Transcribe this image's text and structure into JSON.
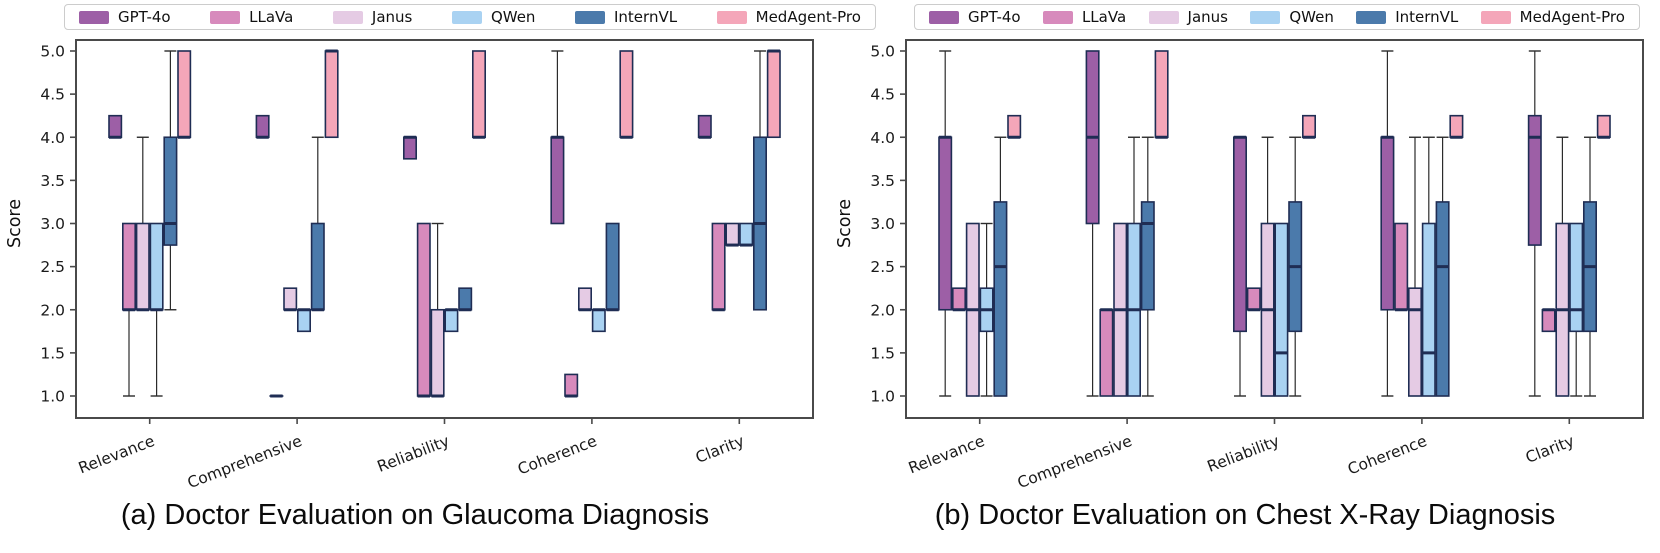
{
  "figure": {
    "background": "#ffffff",
    "box_format": [
      "min",
      "q1",
      "median",
      "q3",
      "max"
    ],
    "series_names": [
      "GPT-4o",
      "LLaVa",
      "Janus",
      "QWen",
      "InternVL",
      "MedAgent-Pro"
    ],
    "series_colors": {
      "GPT-4o": "#9d5fa6",
      "LLaVa": "#d78abc",
      "Janus": "#e5cbe4",
      "QWen": "#a9d2f2",
      "InternVL": "#4b7aab",
      "MedAgent-Pro": "#f4a6b9"
    },
    "style": {
      "box_edge_color": "#1f2d54",
      "median_color": "#1f2d54",
      "whisker_color": "#2b2b2b",
      "spine_color": "#4a4a4a",
      "tick_label_color": "#1a1a1a"
    }
  },
  "chart_data": [
    {
      "type": "boxplot",
      "title": "(a) Doctor Evaluation on Glaucoma Diagnosis",
      "ylabel": "Score",
      "ylim": [
        1.0,
        5.0
      ],
      "yticks": [
        1.0,
        1.5,
        2.0,
        2.5,
        3.0,
        3.5,
        4.0,
        4.5,
        5.0
      ],
      "grid": false,
      "legend_position": "top",
      "categories": [
        "Relevance",
        "Comprehensive",
        "Reliability",
        "Coherence",
        "Clarity"
      ],
      "series": [
        {
          "name": "GPT-4o",
          "boxes": [
            [
              4.0,
              4.0,
              4.0,
              4.25,
              4.25
            ],
            [
              4.0,
              4.0,
              4.0,
              4.25,
              4.25
            ],
            [
              3.75,
              3.75,
              4.0,
              4.0,
              4.0
            ],
            [
              3.0,
              3.0,
              4.0,
              4.0,
              5.0
            ],
            [
              4.0,
              4.0,
              4.0,
              4.25,
              4.25
            ]
          ]
        },
        {
          "name": "LLaVa",
          "boxes": [
            [
              1.0,
              2.0,
              2.0,
              3.0,
              3.0
            ],
            [
              1.0,
              1.0,
              1.0,
              1.0,
              1.0
            ],
            [
              1.0,
              1.0,
              1.0,
              3.0,
              3.0
            ],
            [
              1.0,
              1.0,
              1.0,
              1.25,
              1.25
            ],
            [
              2.0,
              2.0,
              2.0,
              3.0,
              3.0
            ]
          ]
        },
        {
          "name": "Janus",
          "boxes": [
            [
              2.0,
              2.0,
              2.0,
              3.0,
              4.0
            ],
            [
              2.0,
              2.0,
              2.0,
              2.25,
              2.25
            ],
            [
              1.0,
              1.0,
              1.0,
              2.0,
              3.0
            ],
            [
              2.0,
              2.0,
              2.0,
              2.25,
              2.25
            ],
            [
              2.75,
              2.75,
              2.75,
              3.0,
              3.0
            ]
          ]
        },
        {
          "name": "QWen",
          "boxes": [
            [
              1.0,
              2.0,
              2.0,
              3.0,
              3.0
            ],
            [
              1.75,
              1.75,
              2.0,
              2.0,
              2.0
            ],
            [
              1.75,
              1.75,
              2.0,
              2.0,
              2.0
            ],
            [
              1.75,
              1.75,
              2.0,
              2.0,
              2.0
            ],
            [
              2.75,
              2.75,
              2.75,
              3.0,
              3.0
            ]
          ]
        },
        {
          "name": "InternVL",
          "boxes": [
            [
              2.0,
              2.75,
              3.0,
              4.0,
              5.0
            ],
            [
              2.0,
              2.0,
              2.0,
              3.0,
              4.0
            ],
            [
              2.0,
              2.0,
              2.0,
              2.25,
              2.25
            ],
            [
              2.0,
              2.0,
              2.0,
              3.0,
              3.0
            ],
            [
              2.0,
              2.0,
              3.0,
              4.0,
              5.0
            ]
          ]
        },
        {
          "name": "MedAgent-Pro",
          "boxes": [
            [
              4.0,
              4.0,
              4.0,
              5.0,
              5.0
            ],
            [
              4.0,
              4.0,
              5.0,
              5.0,
              5.0
            ],
            [
              4.0,
              4.0,
              4.0,
              5.0,
              5.0
            ],
            [
              4.0,
              4.0,
              4.0,
              5.0,
              5.0
            ],
            [
              4.0,
              4.0,
              5.0,
              5.0,
              5.0
            ]
          ]
        }
      ]
    },
    {
      "type": "boxplot",
      "title": "(b) Doctor Evaluation on Chest X-Ray Diagnosis",
      "ylabel": "Score",
      "ylim": [
        1.0,
        5.0
      ],
      "yticks": [
        1.0,
        1.5,
        2.0,
        2.5,
        3.0,
        3.5,
        4.0,
        4.5,
        5.0
      ],
      "grid": false,
      "legend_position": "top",
      "categories": [
        "Relevance",
        "Comprehensive",
        "Reliability",
        "Coherence",
        "Clarity"
      ],
      "series": [
        {
          "name": "GPT-4o",
          "boxes": [
            [
              1.0,
              2.0,
              4.0,
              4.0,
              5.0
            ],
            [
              1.0,
              3.0,
              4.0,
              5.0,
              5.0
            ],
            [
              1.0,
              1.75,
              4.0,
              4.0,
              4.0
            ],
            [
              1.0,
              2.0,
              4.0,
              4.0,
              5.0
            ],
            [
              1.0,
              2.75,
              4.0,
              4.25,
              5.0
            ]
          ]
        },
        {
          "name": "LLaVa",
          "boxes": [
            [
              2.0,
              2.0,
              2.0,
              2.25,
              2.25
            ],
            [
              1.0,
              1.0,
              2.0,
              2.0,
              2.0
            ],
            [
              2.0,
              2.0,
              2.0,
              2.25,
              2.25
            ],
            [
              2.0,
              2.0,
              2.0,
              3.0,
              3.0
            ],
            [
              1.75,
              1.75,
              2.0,
              2.0,
              2.0
            ]
          ]
        },
        {
          "name": "Janus",
          "boxes": [
            [
              1.0,
              1.0,
              2.0,
              3.0,
              3.0
            ],
            [
              1.0,
              1.0,
              2.0,
              3.0,
              3.0
            ],
            [
              1.0,
              1.0,
              2.0,
              3.0,
              4.0
            ],
            [
              1.0,
              1.0,
              2.0,
              2.25,
              4.0
            ],
            [
              1.0,
              1.0,
              2.0,
              3.0,
              4.0
            ]
          ]
        },
        {
          "name": "QWen",
          "boxes": [
            [
              1.0,
              1.75,
              2.0,
              2.25,
              3.0
            ],
            [
              1.0,
              1.0,
              2.0,
              3.0,
              4.0
            ],
            [
              1.0,
              1.0,
              1.5,
              3.0,
              3.0
            ],
            [
              1.0,
              1.0,
              1.5,
              3.0,
              4.0
            ],
            [
              1.0,
              1.75,
              2.0,
              3.0,
              3.0
            ]
          ]
        },
        {
          "name": "InternVL",
          "boxes": [
            [
              1.0,
              1.0,
              2.5,
              3.25,
              4.0
            ],
            [
              1.0,
              2.0,
              3.0,
              3.25,
              4.0
            ],
            [
              1.0,
              1.75,
              2.5,
              3.25,
              4.0
            ],
            [
              1.0,
              1.0,
              2.5,
              3.25,
              4.0
            ],
            [
              1.0,
              1.75,
              2.5,
              3.25,
              4.0
            ]
          ]
        },
        {
          "name": "MedAgent-Pro",
          "boxes": [
            [
              4.0,
              4.0,
              4.0,
              4.25,
              4.25
            ],
            [
              4.0,
              4.0,
              4.0,
              5.0,
              5.0
            ],
            [
              4.0,
              4.0,
              4.0,
              4.25,
              4.25
            ],
            [
              4.0,
              4.0,
              4.0,
              4.25,
              4.25
            ],
            [
              4.0,
              4.0,
              4.0,
              4.25,
              4.25
            ]
          ]
        }
      ]
    }
  ]
}
